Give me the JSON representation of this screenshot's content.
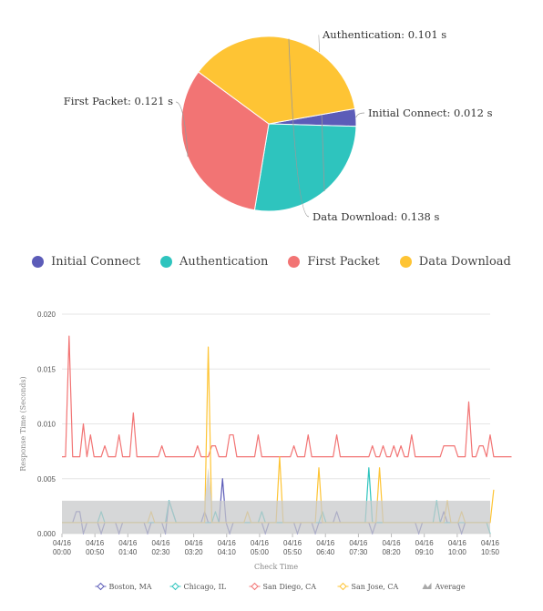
{
  "chart_data": [
    {
      "type": "pie",
      "unit": "s",
      "slices": [
        {
          "name": "Initial Connect",
          "value": 0.012,
          "color": "#5c5cb8",
          "label": "Initial Connect: 0.012 s"
        },
        {
          "name": "Authentication",
          "value": 0.101,
          "color": "#2ec4be",
          "label": "Authentication: 0.101 s"
        },
        {
          "name": "First Packet",
          "value": 0.121,
          "color": "#f27474",
          "label": "First Packet: 0.121 s"
        },
        {
          "name": "Data Download",
          "value": 0.138,
          "color": "#fec434",
          "label": "Data Download: 0.138 s"
        }
      ],
      "legend_position": "bottom"
    },
    {
      "type": "line",
      "xlabel": "Check Time",
      "ylabel": "Response Time (Seconds)",
      "ylim": [
        0,
        0.02
      ],
      "yticks": [
        "0.000",
        "0.005",
        "0.010",
        "0.015",
        "0.020"
      ],
      "xticks": [
        {
          "date": "04/16",
          "time": "00:00"
        },
        {
          "date": "04/16",
          "time": "00:50"
        },
        {
          "date": "04/16",
          "time": "01:40"
        },
        {
          "date": "04/16",
          "time": "02:30"
        },
        {
          "date": "04/16",
          "time": "03:20"
        },
        {
          "date": "04/16",
          "time": "04:10"
        },
        {
          "date": "04/16",
          "time": "05:00"
        },
        {
          "date": "04/16",
          "time": "05:50"
        },
        {
          "date": "04/16",
          "time": "06:40"
        },
        {
          "date": "04/16",
          "time": "07:30"
        },
        {
          "date": "04/16",
          "time": "08:20"
        },
        {
          "date": "04/16",
          "time": "09:10"
        },
        {
          "date": "04/16",
          "time": "10:00"
        },
        {
          "date": "04/16",
          "time": "10:50"
        }
      ],
      "grid": true,
      "legend_position": "bottom",
      "series": [
        {
          "name": "Boston, MA",
          "color": "#5c5cb8",
          "values": [
            0.001,
            0.001,
            0.001,
            0.001,
            0.002,
            0.002,
            0,
            0.001,
            0.001,
            0.001,
            0.001,
            0,
            0.001,
            0.001,
            0.001,
            0.001,
            0,
            0.001,
            0.001,
            0.001,
            0.001,
            0.001,
            0.001,
            0.001,
            0,
            0.001,
            0.001,
            0.001,
            0.001,
            0,
            0.003,
            0.002,
            0.001,
            0.001,
            0.001,
            0.001,
            0.001,
            0.001,
            0.001,
            0.001,
            0.002,
            0.001,
            0.001,
            0.001,
            0.001,
            0.005,
            0.001,
            0,
            0.001,
            0.001,
            0.001,
            0.001,
            0.001,
            0.001,
            0.001,
            0.001,
            0.001,
            0,
            0.001,
            0.001,
            0.001,
            0.001,
            0.001,
            0.001,
            0.001,
            0.001,
            0,
            0.001,
            0.001,
            0.001,
            0.001,
            0,
            0.001,
            0.001,
            0.001,
            0.001,
            0.001,
            0.002,
            0.001,
            0.001,
            0.001,
            0.001,
            0.001,
            0.001,
            0.001,
            0.001,
            0.001,
            0,
            0.001,
            0.001,
            0.001,
            0.001,
            0.001,
            0.001,
            0.001,
            0.001,
            0.001,
            0.001,
            0.001,
            0.001,
            0,
            0.001,
            0.001,
            0.001,
            0.001,
            0.001,
            0.001,
            0.002,
            0.001,
            0.001,
            0.001,
            0.001,
            0,
            0.001,
            0.001,
            0.001,
            0.001,
            0.001,
            0.001,
            0.001,
            0.001
          ]
        },
        {
          "name": "Chicago, IL",
          "color": "#2ec4be",
          "values": [
            0.001,
            0.001,
            0.001,
            0.001,
            0.001,
            0.001,
            0.001,
            0.001,
            0.001,
            0.001,
            0.001,
            0.002,
            0.001,
            0.001,
            0.001,
            0.001,
            0.001,
            0.001,
            0.001,
            0.001,
            0.001,
            0.001,
            0.001,
            0.001,
            0.001,
            0.001,
            0.001,
            0.001,
            0.001,
            0.001,
            0.003,
            0.002,
            0.001,
            0.001,
            0.001,
            0.001,
            0.001,
            0.001,
            0.001,
            0.001,
            0.001,
            0.001,
            0.001,
            0.002,
            0.001,
            0.001,
            0.001,
            0.001,
            0.001,
            0.001,
            0.001,
            0.001,
            0.001,
            0.001,
            0.001,
            0.001,
            0.002,
            0.001,
            0.001,
            0.001,
            0.001,
            0.001,
            0.001,
            0.001,
            0.001,
            0.001,
            0.001,
            0.001,
            0.001,
            0.001,
            0.001,
            0.001,
            0.001,
            0.002,
            0.001,
            0.001,
            0.001,
            0.001,
            0.001,
            0.001,
            0.001,
            0.001,
            0.001,
            0.001,
            0.001,
            0.001,
            0.006,
            0.001,
            0.001,
            0.001,
            0.001,
            0.001,
            0.001,
            0.001,
            0.001,
            0.001,
            0.001,
            0.001,
            0.001,
            0.001,
            0.001,
            0.001,
            0.001,
            0.001,
            0.001,
            0.003,
            0.001,
            0.001,
            0.001,
            0.001,
            0.001,
            0.001,
            0.001,
            0.001,
            0.001,
            0.001,
            0.001,
            0.001,
            0.001,
            0.001,
            0
          ]
        },
        {
          "name": "San Diego, CA",
          "color": "#f27474",
          "values": [
            0.007,
            0.007,
            0.018,
            0.007,
            0.007,
            0.007,
            0.01,
            0.007,
            0.009,
            0.007,
            0.007,
            0.007,
            0.008,
            0.007,
            0.007,
            0.007,
            0.009,
            0.007,
            0.007,
            0.007,
            0.011,
            0.007,
            0.007,
            0.007,
            0.007,
            0.007,
            0.007,
            0.007,
            0.008,
            0.007,
            0.007,
            0.007,
            0.007,
            0.007,
            0.007,
            0.007,
            0.007,
            0.007,
            0.008,
            0.007,
            0.007,
            0.007,
            0.008,
            0.008,
            0.007,
            0.007,
            0.007,
            0.009,
            0.009,
            0.007,
            0.007,
            0.007,
            0.007,
            0.007,
            0.007,
            0.009,
            0.007,
            0.007,
            0.007,
            0.007,
            0.007,
            0.007,
            0.007,
            0.007,
            0.007,
            0.008,
            0.007,
            0.007,
            0.007,
            0.009,
            0.007,
            0.007,
            0.007,
            0.007,
            0.007,
            0.007,
            0.007,
            0.009,
            0.007,
            0.007,
            0.007,
            0.007,
            0.007,
            0.007,
            0.007,
            0.007,
            0.007,
            0.008,
            0.007,
            0.007,
            0.008,
            0.007,
            0.007,
            0.008,
            0.007,
            0.008,
            0.007,
            0.007,
            0.009,
            0.007,
            0.007,
            0.007,
            0.007,
            0.007,
            0.007,
            0.007,
            0.007,
            0.008,
            0.008,
            0.008,
            0.008,
            0.007,
            0.007,
            0.007,
            0.012,
            0.007,
            0.007,
            0.008,
            0.008,
            0.007,
            0.009,
            0.007,
            0.007,
            0.007,
            0.007,
            0.007,
            0.007
          ]
        },
        {
          "name": "San Jose, CA",
          "color": "#fec434",
          "values": [
            0.001,
            0.001,
            0.001,
            0.001,
            0.001,
            0.001,
            0.001,
            0.001,
            0.001,
            0.001,
            0.001,
            0.001,
            0.001,
            0.001,
            0.001,
            0.001,
            0.001,
            0.001,
            0.001,
            0.001,
            0.001,
            0.001,
            0.001,
            0.001,
            0.001,
            0.002,
            0.001,
            0.001,
            0.001,
            0.001,
            0.001,
            0.001,
            0.001,
            0.001,
            0.001,
            0.001,
            0.001,
            0.001,
            0.001,
            0.001,
            0.001,
            0.017,
            0.001,
            0.001,
            0.001,
            0.001,
            0.001,
            0.001,
            0.001,
            0.001,
            0.001,
            0.001,
            0.002,
            0.001,
            0.001,
            0.001,
            0.001,
            0.001,
            0.001,
            0.001,
            0.001,
            0.007,
            0.001,
            0.001,
            0.001,
            0.001,
            0.001,
            0.001,
            0.001,
            0.001,
            0.001,
            0.001,
            0.006,
            0.001,
            0.001,
            0.001,
            0.001,
            0.001,
            0.001,
            0.001,
            0.001,
            0.001,
            0.001,
            0.001,
            0.001,
            0.001,
            0.001,
            0.001,
            0.001,
            0.006,
            0.001,
            0.001,
            0.001,
            0.001,
            0.001,
            0.001,
            0.001,
            0.001,
            0.001,
            0.001,
            0.001,
            0.001,
            0.001,
            0.001,
            0.001,
            0.001,
            0.001,
            0.001,
            0.003,
            0.001,
            0.001,
            0.001,
            0.002,
            0.001,
            0.001,
            0.001,
            0.001,
            0.001,
            0.001,
            0.001,
            0.001,
            0.004
          ]
        },
        {
          "name": "Average",
          "color": "#c8cacb",
          "type": "area",
          "values": [
            0.003,
            0.003,
            0.003,
            0.003,
            0.003,
            0.003,
            0.003,
            0.003,
            0.003,
            0.003,
            0.003,
            0.003,
            0.003,
            0.003,
            0.003,
            0.003,
            0.003,
            0.003,
            0.003,
            0.003,
            0.003,
            0.003,
            0.003,
            0.003,
            0.003,
            0.003,
            0.003,
            0.003,
            0.003,
            0.003,
            0.003,
            0.003,
            0.003,
            0.003,
            0.003,
            0.003,
            0.003,
            0.003,
            0.003,
            0.003,
            0.003,
            0.006,
            0.003,
            0.003,
            0.003,
            0.003,
            0.003,
            0.003,
            0.003,
            0.003,
            0.003,
            0.003,
            0.003,
            0.003,
            0.003,
            0.003,
            0.003,
            0.003,
            0.003,
            0.003,
            0.003,
            0.003,
            0.003,
            0.003,
            0.003,
            0.003,
            0.003,
            0.003,
            0.003,
            0.003,
            0.003,
            0.003,
            0.003,
            0.003,
            0.003,
            0.003,
            0.003,
            0.003,
            0.003,
            0.003,
            0.003,
            0.003,
            0.003,
            0.003,
            0.003,
            0.003,
            0.003,
            0.003,
            0.003,
            0.003,
            0.003,
            0.003,
            0.003,
            0.003,
            0.003,
            0.003,
            0.003,
            0.003,
            0.003,
            0.003,
            0.003,
            0.003,
            0.003,
            0.003,
            0.003,
            0.003,
            0.003,
            0.003,
            0.003,
            0.003,
            0.003,
            0.003,
            0.003,
            0.003,
            0.003,
            0.003,
            0.003,
            0.003,
            0.003,
            0.003,
            0.003
          ]
        }
      ]
    }
  ]
}
